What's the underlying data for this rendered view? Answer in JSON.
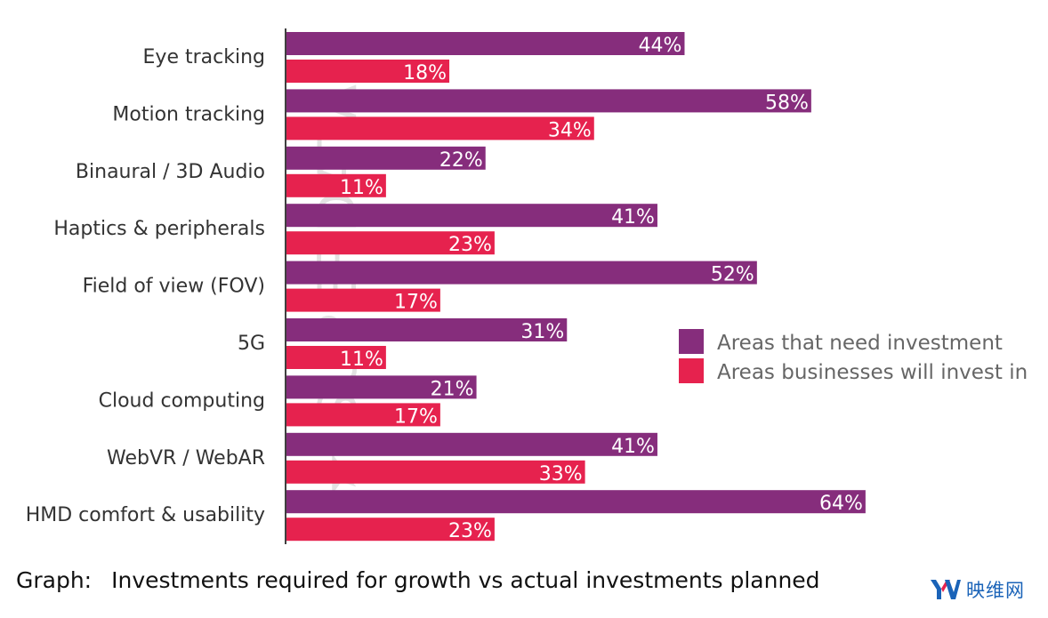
{
  "chart_data": {
    "type": "bar",
    "orientation": "horizontal",
    "categories": [
      "Eye tracking",
      "Motion tracking",
      "Binaural / 3D Audio",
      "Haptics & peripherals",
      "Field of view (FOV)",
      "5G",
      "Cloud computing",
      "WebVR / WebAR",
      "HMD comfort & usability"
    ],
    "series": [
      {
        "name": "Areas that need investment",
        "color": "#862D7C",
        "values": [
          44,
          58,
          22,
          41,
          52,
          31,
          21,
          41,
          64
        ]
      },
      {
        "name": "Areas businesses will invest in",
        "color": "#E6224E",
        "values": [
          18,
          34,
          11,
          23,
          17,
          11,
          17,
          33,
          23
        ]
      }
    ],
    "value_suffix": "%",
    "xlim": [
      0,
      64
    ],
    "grid": false,
    "legend": "right",
    "caption_label": "Graph:",
    "caption_text": "Investments required for growth vs actual investments planned"
  },
  "watermark": "SUPERDATA",
  "logo": {
    "mark": "YV",
    "text": "映维网"
  }
}
